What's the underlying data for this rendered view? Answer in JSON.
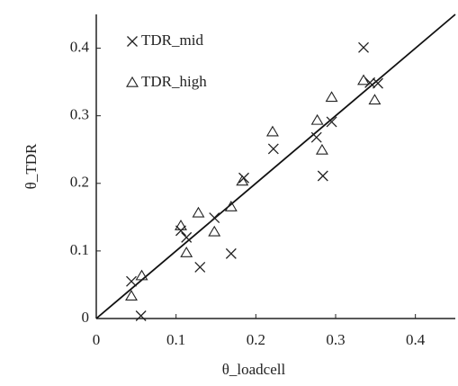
{
  "chart_data": {
    "type": "scatter",
    "x_label": "θ_loadcell",
    "y_label": "θ_TDR",
    "xlim": [
      0,
      0.45
    ],
    "ylim": [
      0,
      0.45
    ],
    "xticks": [
      0,
      0.1,
      0.2,
      0.3,
      0.4
    ],
    "yticks": [
      0,
      0.1,
      0.2,
      0.3,
      0.4
    ],
    "legend": "upper left",
    "reference_line": {
      "x": [
        0,
        0.45
      ],
      "y": [
        0,
        0.45
      ],
      "color": "#111111"
    },
    "series": [
      {
        "name": "TDR_mid",
        "marker": "x",
        "color": "#222222",
        "x": [
          0.044,
          0.056,
          0.106,
          0.113,
          0.13,
          0.148,
          0.169,
          0.185,
          0.222,
          0.276,
          0.284,
          0.295,
          0.335,
          0.343,
          0.353
        ],
        "values": [
          0.055,
          0.004,
          0.13,
          0.12,
          0.076,
          0.149,
          0.096,
          0.208,
          0.251,
          0.268,
          0.211,
          0.291,
          0.401,
          0.349,
          0.348
        ]
      },
      {
        "name": "TDR_high",
        "marker": "triangle",
        "color": "#222222",
        "x": [
          0.044,
          0.057,
          0.106,
          0.113,
          0.128,
          0.148,
          0.169,
          0.183,
          0.221,
          0.277,
          0.283,
          0.295,
          0.335,
          0.349
        ],
        "values": [
          0.033,
          0.063,
          0.137,
          0.097,
          0.156,
          0.128,
          0.165,
          0.203,
          0.276,
          0.293,
          0.249,
          0.327,
          0.352,
          0.323
        ]
      }
    ]
  }
}
